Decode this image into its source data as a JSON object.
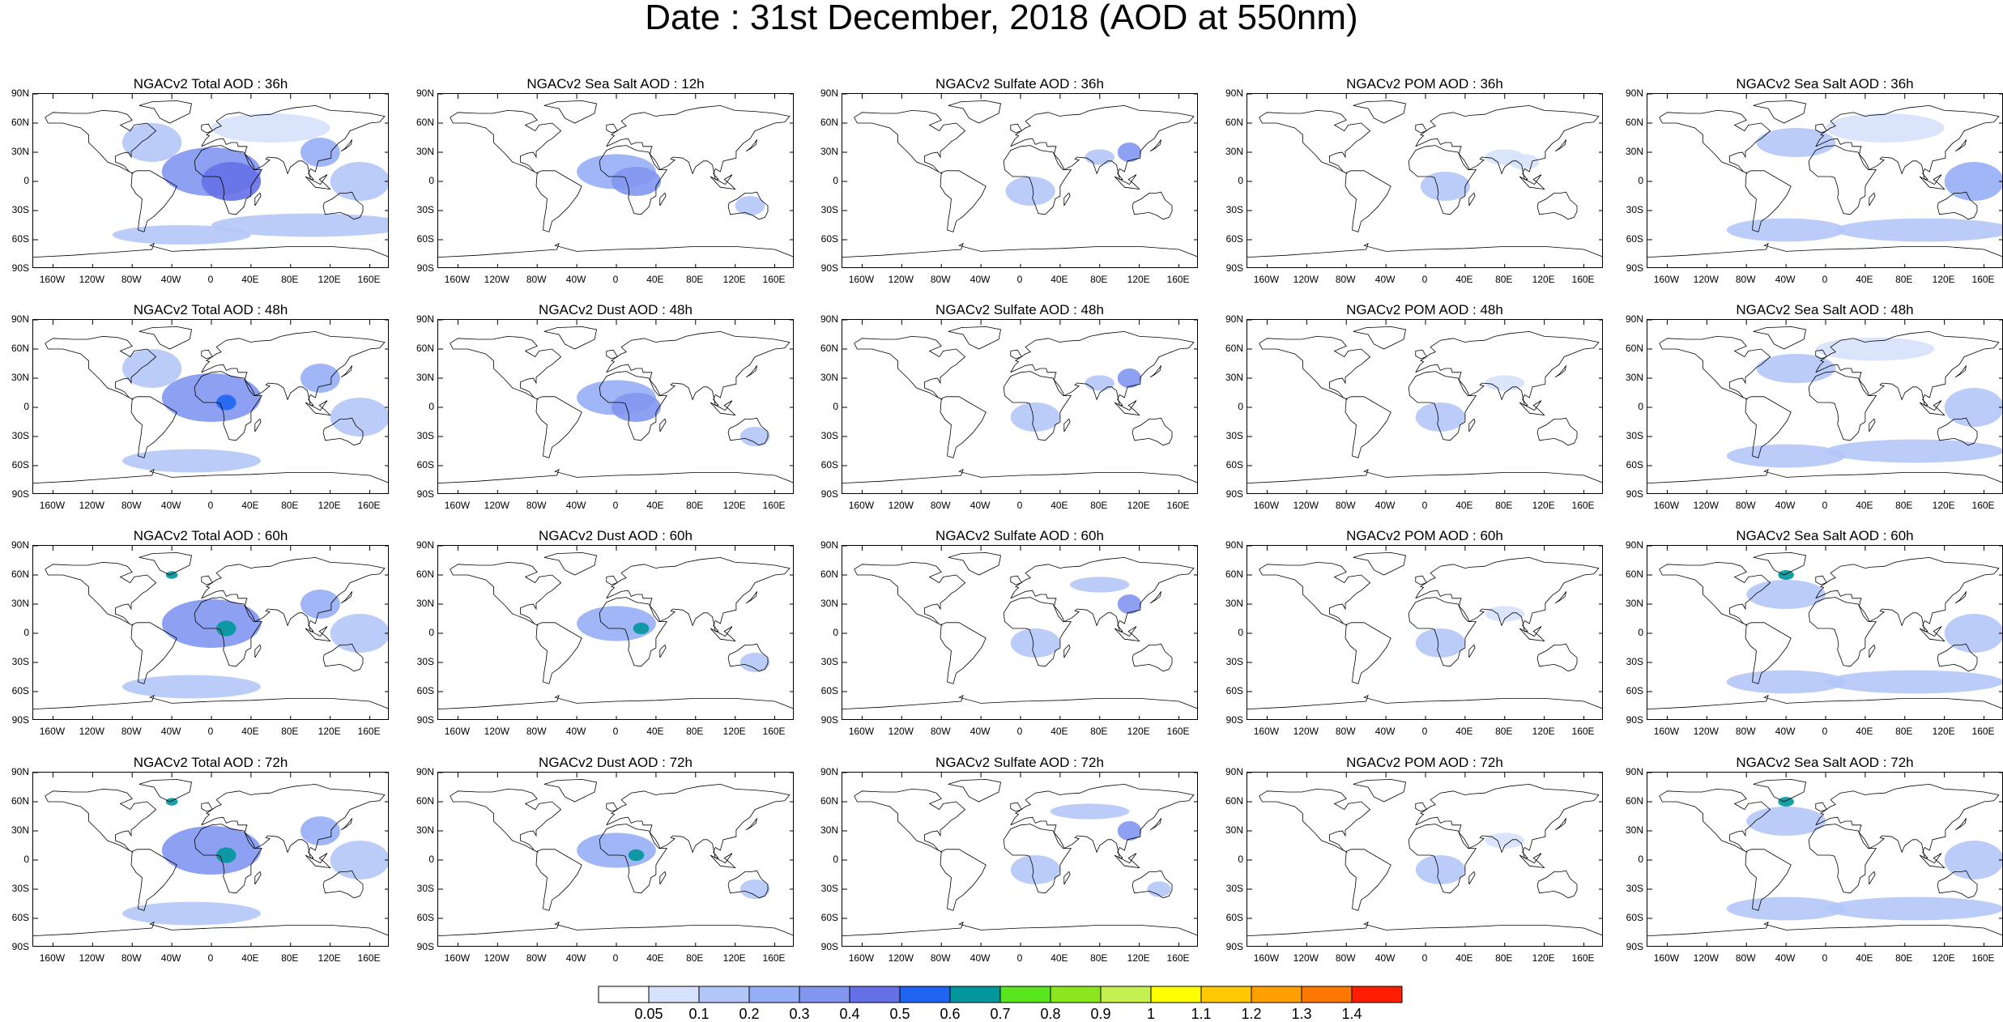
{
  "title": "Date : 31st December, 2018 (AOD at 550nm)",
  "panels": [
    {
      "title": "NGACv2 Total AOD : 36h"
    },
    {
      "title": "NGACv2 Sea Salt  AOD : 12h"
    },
    {
      "title": "NGACv2 Sulfate AOD : 36h"
    },
    {
      "title": "NGACv2 POM AOD : 36h"
    },
    {
      "title": "NGACv2 Sea Salt AOD : 36h"
    },
    {
      "title": "NGACv2 Total AOD : 48h"
    },
    {
      "title": "NGACv2 Dust AOD : 48h"
    },
    {
      "title": "NGACv2 Sulfate AOD : 48h"
    },
    {
      "title": "NGACv2 POM AOD : 48h"
    },
    {
      "title": "NGACv2 Sea Salt AOD : 48h"
    },
    {
      "title": "NGACv2 Total AOD : 60h"
    },
    {
      "title": "NGACv2 Dust AOD : 60h"
    },
    {
      "title": "NGACv2 Sulfate AOD : 60h"
    },
    {
      "title": "NGACv2 POM AOD : 60h"
    },
    {
      "title": "NGACv2 Sea Salt AOD : 60h"
    },
    {
      "title": "NGACv2 Total AOD : 72h"
    },
    {
      "title": "NGACv2 Dust AOD : 72h"
    },
    {
      "title": "NGACv2 Sulfate AOD : 72h"
    },
    {
      "title": "NGACv2 POM AOD : 72h"
    },
    {
      "title": "NGACv2 Sea Salt  AOD : 72h"
    }
  ],
  "lat_labels": [
    "90N",
    "60N",
    "30N",
    "0",
    "30S",
    "60S",
    "90S"
  ],
  "lon_labels": [
    "160W",
    "120W",
    "80W",
    "40W",
    "0",
    "40E",
    "80E",
    "120E",
    "160E"
  ],
  "colorbar": {
    "labels": [
      "0.05",
      "0.1",
      "0.2",
      "0.3",
      "0.4",
      "0.5",
      "0.6",
      "0.7",
      "0.8",
      "0.9",
      "1",
      "1.1",
      "1.2",
      "1.3",
      "1.4"
    ],
    "colors": [
      "#ffffff",
      "#d6e2fc",
      "#b4c6f8",
      "#96aef5",
      "#8296f0",
      "#6670e6",
      "#1e64f0",
      "#00969b",
      "#5ae61e",
      "#8ce61e",
      "#c4f050",
      "#ffff00",
      "#ffc800",
      "#ffa000",
      "#ff7800",
      "#ff1e00"
    ]
  }
}
